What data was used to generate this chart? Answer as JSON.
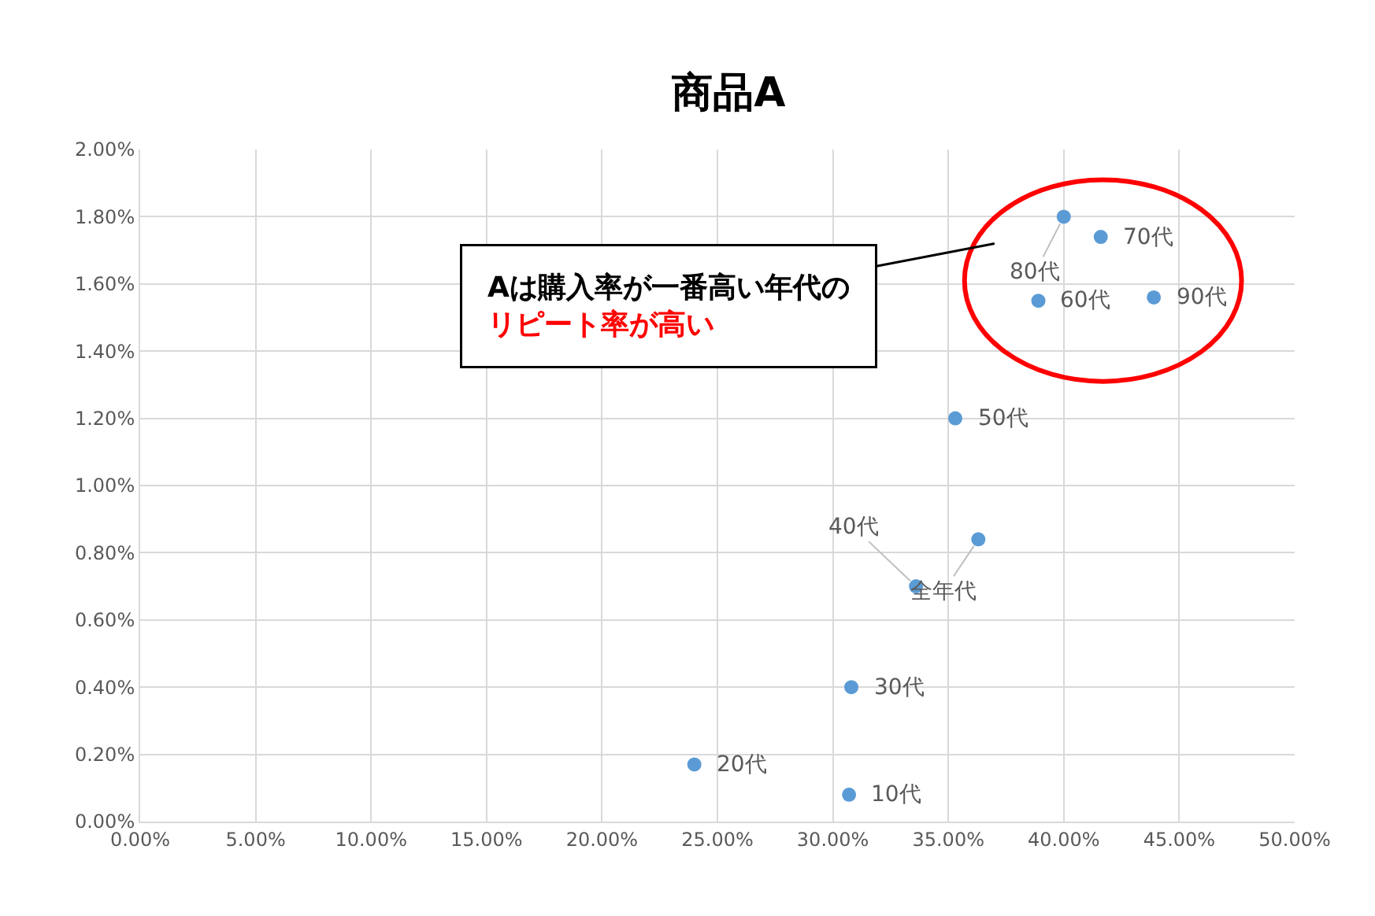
{
  "chart_data": {
    "type": "scatter",
    "title": "商品A",
    "series": [
      {
        "color": "#5b9bd5",
        "x": [
          30.7,
          24.0,
          30.8,
          33.6,
          35.3,
          38.9,
          41.6,
          40.0,
          43.9,
          36.3
        ],
        "values": [
          0.08,
          0.17,
          0.4,
          0.7,
          1.2,
          1.55,
          1.74,
          1.8,
          1.56,
          0.84
        ]
      }
    ],
    "annotations": [
      {
        "text": "10代",
        "x": 30.7,
        "y": 0.08
      },
      {
        "text": "20代",
        "x": 24.0,
        "y": 0.17
      },
      {
        "text": "30代",
        "x": 30.8,
        "y": 0.4
      },
      {
        "text": "40代",
        "x": 33.6,
        "y": 0.7
      },
      {
        "text": "50代",
        "x": 35.3,
        "y": 1.2
      },
      {
        "text": "60代",
        "x": 38.9,
        "y": 1.55
      },
      {
        "text": "70代",
        "x": 41.6,
        "y": 1.74
      },
      {
        "text": "80代",
        "x": 40.0,
        "y": 1.8
      },
      {
        "text": "90代",
        "x": 43.9,
        "y": 1.56
      },
      {
        "text": "全年代",
        "x": 36.3,
        "y": 0.84
      },
      "Aは購入率が一番高い年代の",
      "リピート率が高い"
    ],
    "xlim": [
      0,
      50
    ],
    "ylim": [
      0,
      2
    ],
    "xticks": [
      {
        "value": 0,
        "label": "0.00%"
      },
      {
        "value": 5,
        "label": "5.00%"
      },
      {
        "value": 10,
        "label": "10.00%"
      },
      {
        "value": 15,
        "label": "15.00%"
      },
      {
        "value": 20,
        "label": "20.00%"
      },
      {
        "value": 25,
        "label": "25.00%"
      },
      {
        "value": 30,
        "label": "30.00%"
      },
      {
        "value": 35,
        "label": "35.00%"
      },
      {
        "value": 40,
        "label": "40.00%"
      },
      {
        "value": 45,
        "label": "45.00%"
      },
      {
        "value": 50,
        "label": "50.00%"
      }
    ],
    "yticks": [
      {
        "value": 0,
        "label": "0.00%"
      },
      {
        "value": 0.2,
        "label": "0.20%"
      },
      {
        "value": 0.4,
        "label": "0.40%"
      },
      {
        "value": 0.6,
        "label": "0.60%"
      },
      {
        "value": 0.8,
        "label": "0.80%"
      },
      {
        "value": 1.0,
        "label": "1.00%"
      },
      {
        "value": 1.2,
        "label": "1.20%"
      },
      {
        "value": 1.4,
        "label": "1.40%"
      },
      {
        "value": 1.6,
        "label": "1.60%"
      },
      {
        "value": 1.8,
        "label": "1.80%"
      },
      {
        "value": 2.0,
        "label": "2.00%"
      }
    ],
    "grid": true,
    "marker": "circle"
  }
}
